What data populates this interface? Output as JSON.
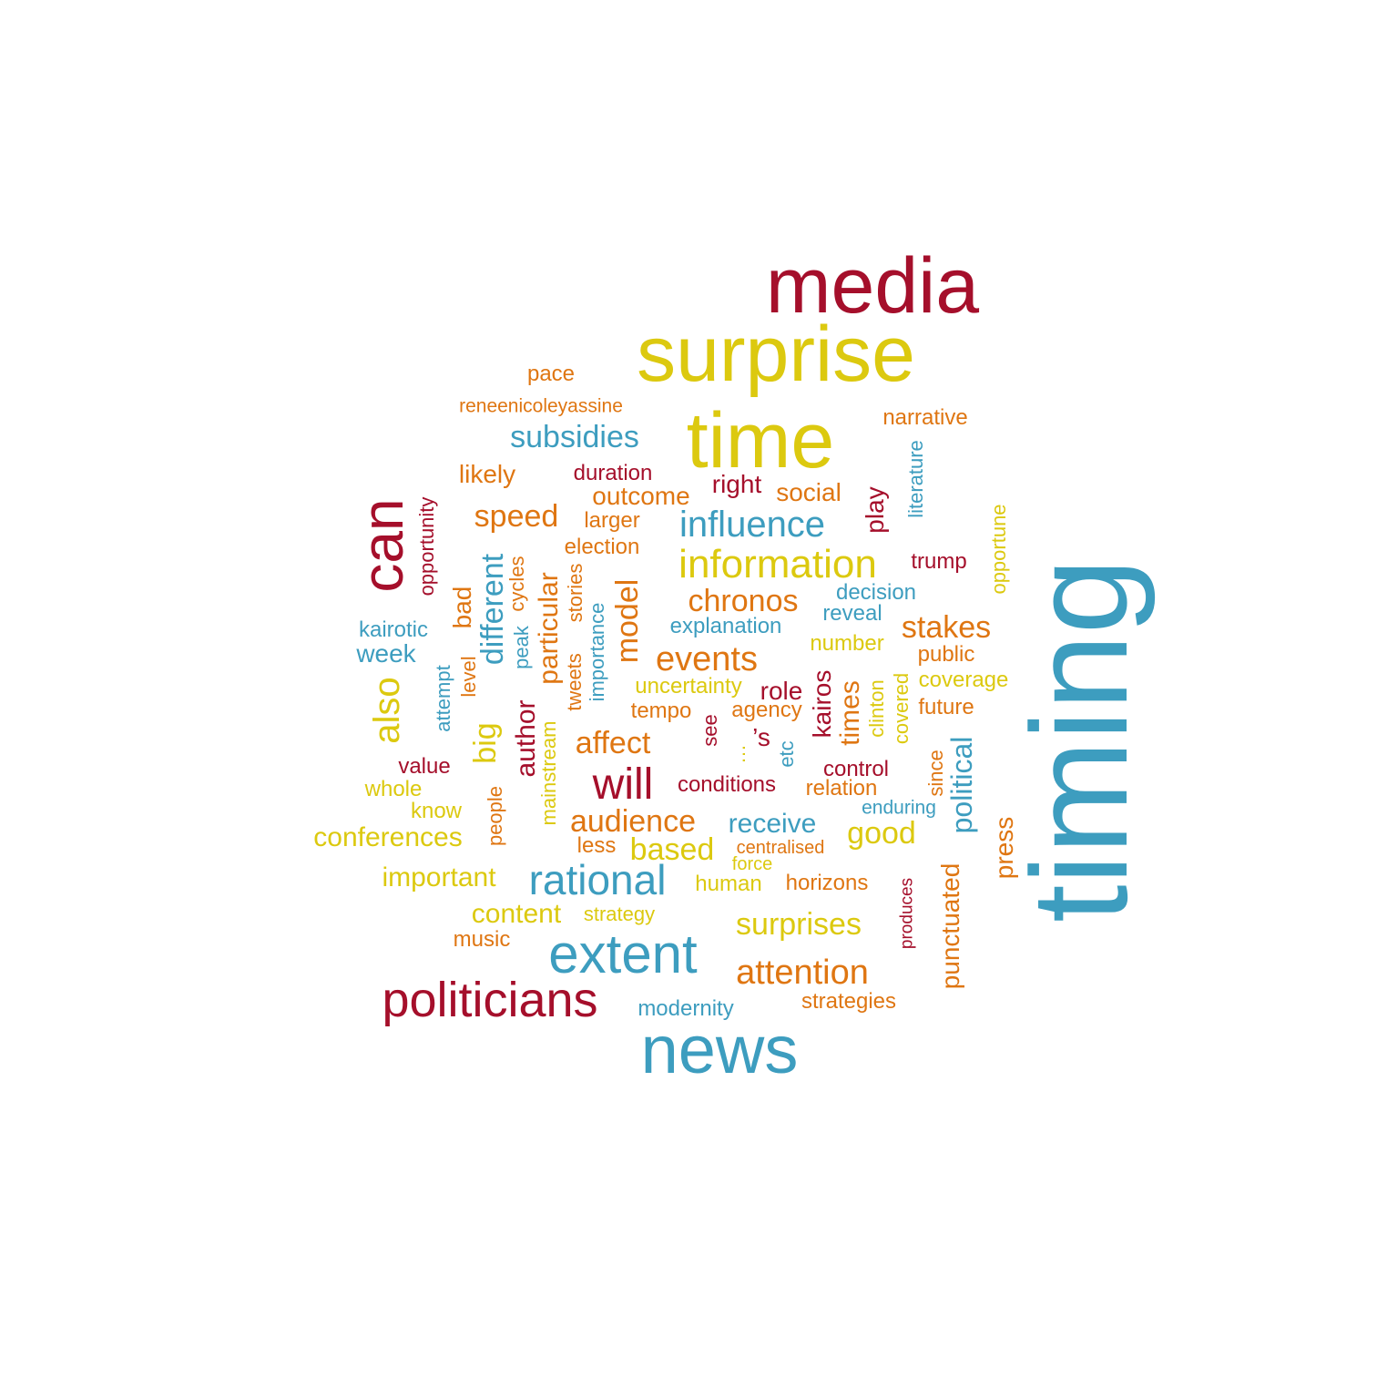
{
  "palette": {
    "red": "#a50f2b",
    "yellow": "#dcc90f",
    "orange": "#df7612",
    "blue": "#3d9dbf"
  },
  "words": [
    {
      "text": "timing",
      "color": "blue",
      "weight": 1.0
    },
    {
      "text": "media",
      "color": "red",
      "weight": 0.56
    },
    {
      "text": "surprise",
      "color": "yellow",
      "weight": 0.56
    },
    {
      "text": "time",
      "color": "yellow",
      "weight": 0.56
    },
    {
      "text": "news",
      "color": "blue",
      "weight": 0.52
    },
    {
      "text": "can",
      "color": "red",
      "weight": 0.45
    },
    {
      "text": "extent",
      "color": "blue",
      "weight": 0.4
    },
    {
      "text": "politicians",
      "color": "red",
      "weight": 0.38
    },
    {
      "text": "rational",
      "color": "blue",
      "weight": 0.33
    },
    {
      "text": "information",
      "color": "yellow",
      "weight": 0.32
    },
    {
      "text": "will",
      "color": "red",
      "weight": 0.32
    },
    {
      "text": "influence",
      "color": "blue",
      "weight": 0.28
    },
    {
      "text": "attention",
      "color": "orange",
      "weight": 0.28
    },
    {
      "text": "subsidies",
      "color": "blue",
      "weight": 0.26
    },
    {
      "text": "events",
      "color": "orange",
      "weight": 0.28
    },
    {
      "text": "speed",
      "color": "orange",
      "weight": 0.26
    },
    {
      "text": "chronos",
      "color": "orange",
      "weight": 0.26
    },
    {
      "text": "stakes",
      "color": "orange",
      "weight": 0.26
    },
    {
      "text": "surprises",
      "color": "yellow",
      "weight": 0.26
    },
    {
      "text": "audience",
      "color": "orange",
      "weight": 0.26
    },
    {
      "text": "affect",
      "color": "orange",
      "weight": 0.26
    },
    {
      "text": "based",
      "color": "yellow",
      "weight": 0.26
    },
    {
      "text": "good",
      "color": "yellow",
      "weight": 0.26
    },
    {
      "text": "receive",
      "color": "blue",
      "weight": 0.24
    },
    {
      "text": "also",
      "color": "yellow",
      "weight": 0.28
    },
    {
      "text": "different",
      "color": "blue",
      "weight": 0.26
    },
    {
      "text": "big",
      "color": "yellow",
      "weight": 0.26
    },
    {
      "text": "model",
      "color": "orange",
      "weight": 0.26
    },
    {
      "text": "author",
      "color": "red",
      "weight": 0.24
    },
    {
      "text": "particular",
      "color": "orange",
      "weight": 0.24
    },
    {
      "text": "political",
      "color": "blue",
      "weight": 0.26
    },
    {
      "text": "press",
      "color": "orange",
      "weight": 0.24
    },
    {
      "text": "punctuated",
      "color": "orange",
      "weight": 0.24
    },
    {
      "text": "times",
      "color": "orange",
      "weight": 0.24
    },
    {
      "text": "kairos",
      "color": "red",
      "weight": 0.24
    },
    {
      "text": "content",
      "color": "yellow",
      "weight": 0.24
    },
    {
      "text": "conferences",
      "color": "yellow",
      "weight": 0.24
    },
    {
      "text": "important",
      "color": "yellow",
      "weight": 0.24
    },
    {
      "text": "outcome",
      "color": "orange",
      "weight": 0.24
    },
    {
      "text": "social",
      "color": "orange",
      "weight": 0.24
    },
    {
      "text": "right",
      "color": "red",
      "weight": 0.24
    },
    {
      "text": "likely",
      "color": "orange",
      "weight": 0.22
    },
    {
      "text": "play",
      "color": "red",
      "weight": 0.22
    },
    {
      "text": "role",
      "color": "red",
      "weight": 0.22
    },
    {
      "text": "week",
      "color": "blue",
      "weight": 0.22
    },
    {
      "text": "bad",
      "color": "orange",
      "weight": 0.22
    },
    {
      "text": "duration",
      "color": "red",
      "weight": 0.19
    },
    {
      "text": "narrative",
      "color": "orange",
      "weight": 0.19
    },
    {
      "text": "larger",
      "color": "orange",
      "weight": 0.19
    },
    {
      "text": "election",
      "color": "orange",
      "weight": 0.19
    },
    {
      "text": "trump",
      "color": "red",
      "weight": 0.19
    },
    {
      "text": "decision",
      "color": "blue",
      "weight": 0.19
    },
    {
      "text": "reveal",
      "color": "blue",
      "weight": 0.19
    },
    {
      "text": "explanation",
      "color": "blue",
      "weight": 0.19
    },
    {
      "text": "kairotic",
      "color": "blue",
      "weight": 0.19
    },
    {
      "text": "number",
      "color": "yellow",
      "weight": 0.19
    },
    {
      "text": "public",
      "color": "orange",
      "weight": 0.19
    },
    {
      "text": "coverage",
      "color": "yellow",
      "weight": 0.19
    },
    {
      "text": "uncertainty",
      "color": "yellow",
      "weight": 0.19
    },
    {
      "text": "tempo",
      "color": "orange",
      "weight": 0.19
    },
    {
      "text": "agency",
      "color": "orange",
      "weight": 0.19
    },
    {
      "text": "future",
      "color": "orange",
      "weight": 0.19
    },
    {
      "text": "value",
      "color": "red",
      "weight": 0.19
    },
    {
      "text": "whole",
      "color": "yellow",
      "weight": 0.19
    },
    {
      "text": "know",
      "color": "yellow",
      "weight": 0.19
    },
    {
      "text": "less",
      "color": "orange",
      "weight": 0.19
    },
    {
      "text": "conditions",
      "color": "red",
      "weight": 0.19
    },
    {
      "text": "control",
      "color": "red",
      "weight": 0.19
    },
    {
      "text": "relation",
      "color": "orange",
      "weight": 0.19
    },
    {
      "text": "human",
      "color": "yellow",
      "weight": 0.19
    },
    {
      "text": "horizons",
      "color": "orange",
      "weight": 0.19
    },
    {
      "text": "strategy",
      "color": "yellow",
      "weight": 0.17
    },
    {
      "text": "strategies",
      "color": "orange",
      "weight": 0.19
    },
    {
      "text": "music",
      "color": "orange",
      "weight": 0.19
    },
    {
      "text": "modernity",
      "color": "blue",
      "weight": 0.19
    },
    {
      "text": "pace",
      "color": "orange",
      "weight": 0.19
    },
    {
      "text": "reneenicoleyassine",
      "color": "orange",
      "weight": 0.17
    },
    {
      "text": "enduring",
      "color": "blue",
      "weight": 0.17
    },
    {
      "text": "centralised",
      "color": "orange",
      "weight": 0.16
    },
    {
      "text": "force",
      "color": "yellow",
      "weight": 0.16
    },
    {
      "text": "’s",
      "color": "red",
      "weight": 0.22
    },
    {
      "text": "opportunity",
      "color": "red",
      "weight": 0.17
    },
    {
      "text": "literature",
      "color": "blue",
      "weight": 0.17
    },
    {
      "text": "opportune",
      "color": "yellow",
      "weight": 0.17
    },
    {
      "text": "cycles",
      "color": "orange",
      "weight": 0.17
    },
    {
      "text": "stories",
      "color": "orange",
      "weight": 0.17
    },
    {
      "text": "tweets",
      "color": "orange",
      "weight": 0.17
    },
    {
      "text": "peak",
      "color": "blue",
      "weight": 0.17
    },
    {
      "text": "importance",
      "color": "blue",
      "weight": 0.17
    },
    {
      "text": "level",
      "color": "orange",
      "weight": 0.17
    },
    {
      "text": "attempt",
      "color": "blue",
      "weight": 0.17
    },
    {
      "text": "mainstream",
      "color": "yellow",
      "weight": 0.17
    },
    {
      "text": "people",
      "color": "orange",
      "weight": 0.17
    },
    {
      "text": "see",
      "color": "red",
      "weight": 0.17
    },
    {
      "text": "…",
      "color": "yellow",
      "weight": 0.17
    },
    {
      "text": "etc",
      "color": "blue",
      "weight": 0.17
    },
    {
      "text": "clinton",
      "color": "yellow",
      "weight": 0.17
    },
    {
      "text": "covered",
      "color": "yellow",
      "weight": 0.17
    },
    {
      "text": "since",
      "color": "orange",
      "weight": 0.17
    },
    {
      "text": "produces",
      "color": "red",
      "weight": 0.15
    }
  ]
}
